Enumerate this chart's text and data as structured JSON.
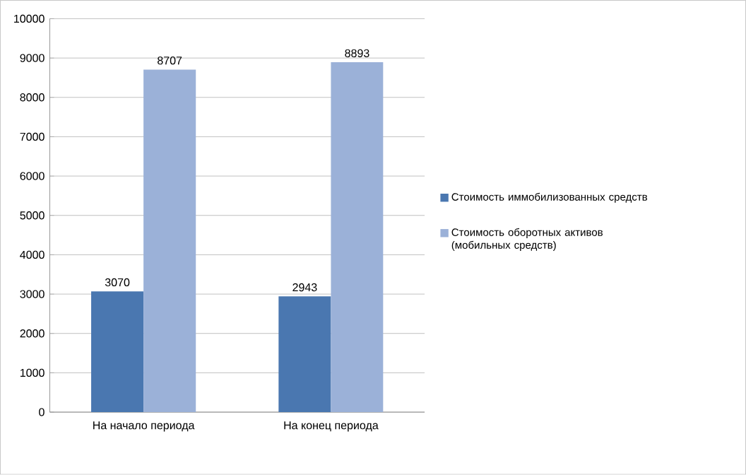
{
  "chart_data": {
    "type": "bar",
    "categories": [
      "На начало периода",
      "На конец периода"
    ],
    "series": [
      {
        "name": "Стоимость иммобилизованных средств",
        "color": "#4a77b0",
        "values": [
          3070,
          2943
        ]
      },
      {
        "name": "Стоимость оборотных активов (мобильных средств)",
        "color": "#9bb1d8",
        "values": [
          8707,
          8893
        ]
      }
    ],
    "ylim": [
      0,
      10000
    ],
    "yticks": [
      0,
      1000,
      2000,
      3000,
      4000,
      5000,
      6000,
      7000,
      8000,
      9000,
      10000
    ],
    "grid": "y",
    "legend": "right",
    "data_labels": true
  }
}
